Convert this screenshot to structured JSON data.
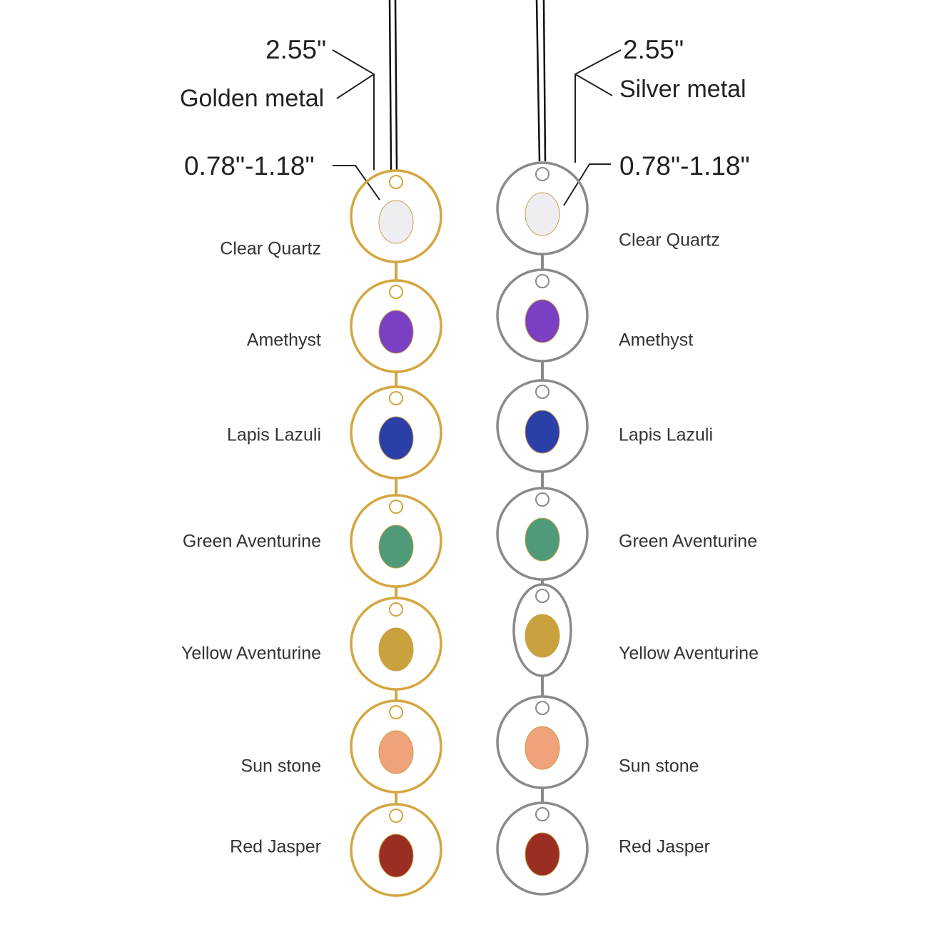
{
  "golden": {
    "size": "2.55\"",
    "metal": "Golden metal",
    "stone_size": "0.78\"-1.18\"",
    "stones": [
      "Clear Quartz",
      "Amethyst",
      "Lapis Lazuli",
      "Green Aventurine",
      "Yellow Aventurine",
      "Sun stone",
      "Red Jasper"
    ]
  },
  "silver": {
    "size": "2.55\"",
    "metal": "Silver metal",
    "stone_size": "0.78\"-1.18\"",
    "stones": [
      "Clear Quartz",
      "Amethyst",
      "Lapis Lazuli",
      "Green Aventurine",
      "Yellow Aventurine",
      "Sun stone",
      "Red Jasper"
    ]
  }
}
